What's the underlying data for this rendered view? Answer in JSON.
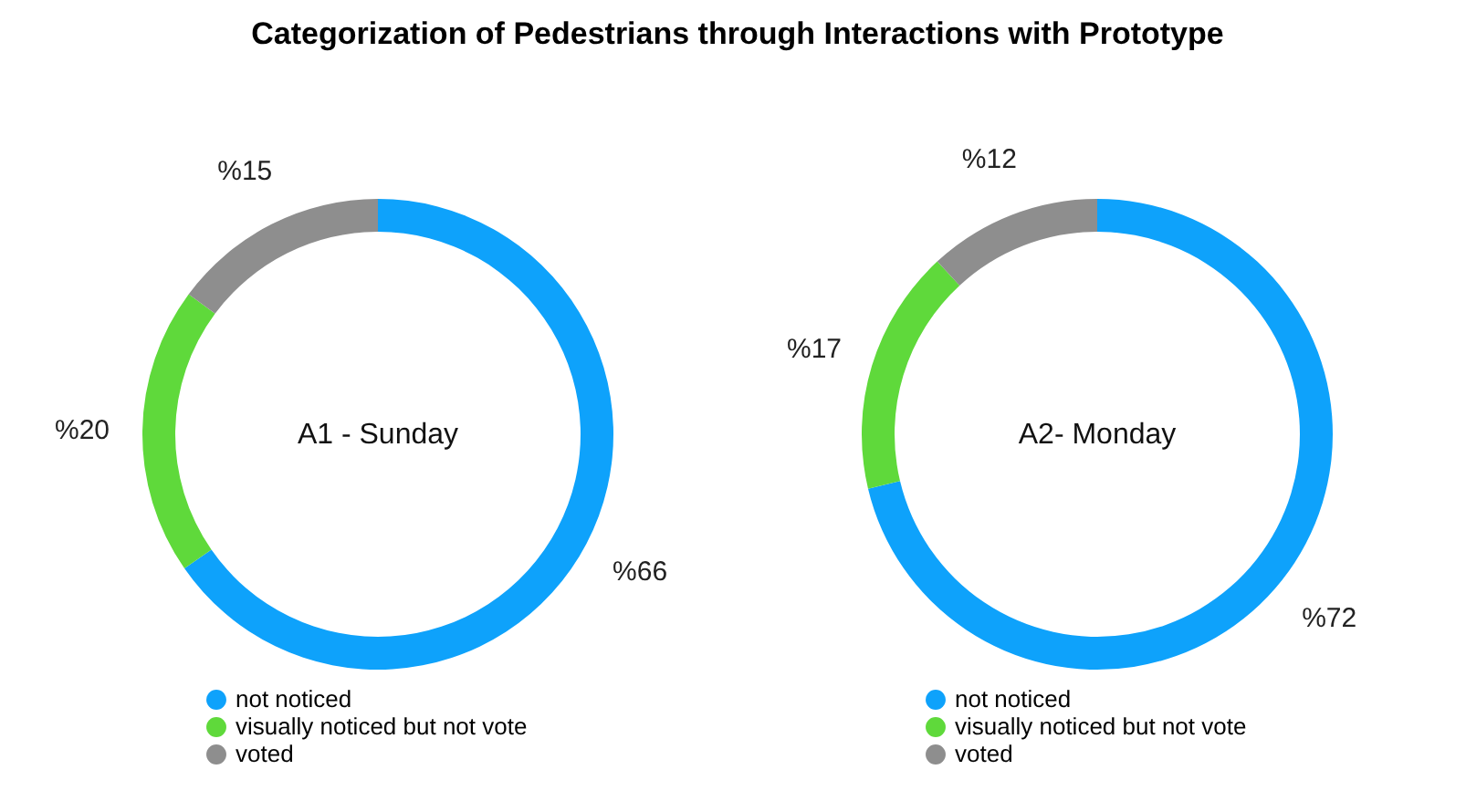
{
  "chart_data": [
    {
      "type": "donut",
      "title": "Categorization of Pedestrians through Interactions with Prototype",
      "categories": [
        "not noticed",
        "visually noticed but not vote",
        "voted"
      ],
      "values": [
        66,
        20,
        15
      ],
      "colors": [
        "#0ea2fb",
        "#5fd93b",
        "#8e8e8e"
      ],
      "value_labels": [
        "%66",
        "%20",
        "%15"
      ],
      "annotations": [
        "A1 - Sunday"
      ],
      "legend": "bottom"
    },
    {
      "type": "donut",
      "categories": [
        "not noticed",
        "visually noticed but not vote",
        "voted"
      ],
      "values": [
        72,
        17,
        12
      ],
      "colors": [
        "#0ea2fb",
        "#5fd93b",
        "#8e8e8e"
      ],
      "value_labels": [
        "%72",
        "%17",
        "%12"
      ],
      "annotations": [
        "A2- Monday"
      ],
      "legend": "bottom"
    }
  ]
}
